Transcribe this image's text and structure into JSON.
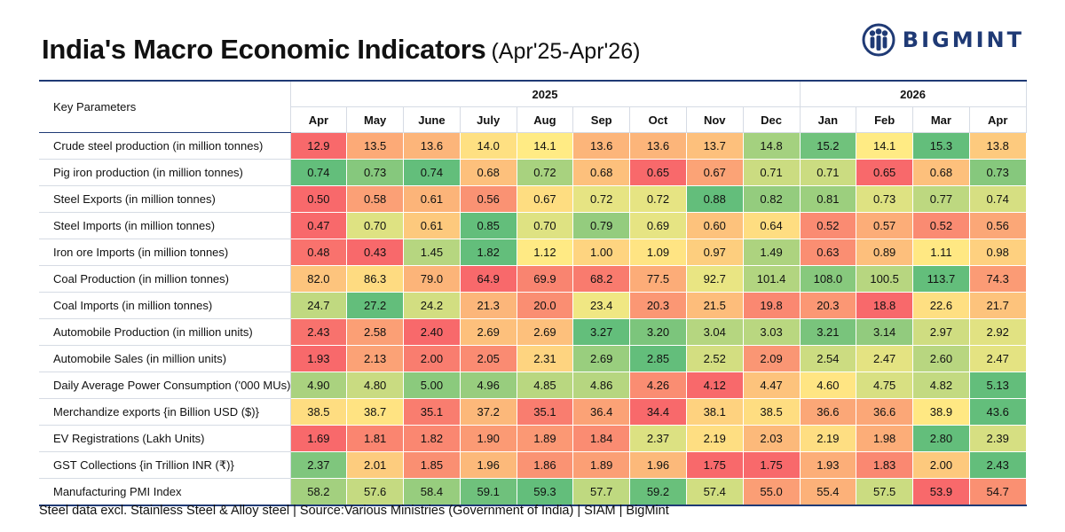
{
  "header": {
    "title": "India's Macro Economic Indicators",
    "subtitle": "(Apr'25-Apr'26)"
  },
  "logo": {
    "text": "BIGMINT",
    "icon": "bigmint-people-icon",
    "color": "#1f3a75"
  },
  "footer": {
    "note": "Steel data excl. Stainless Steel & Alloy steel | Source:Various Ministries (Government of India) | SIAM | BigMint"
  },
  "colors": {
    "low": "#f8696b",
    "mid": "#ffeb84",
    "high": "#63be7b",
    "rule": "#1f3a75"
  },
  "chart_data": {
    "type": "heatmap",
    "row_header": "Key Parameters",
    "years": [
      {
        "label": "2025",
        "span": 9
      },
      {
        "label": "2026",
        "span": 4
      }
    ],
    "columns": [
      "Apr",
      "May",
      "June",
      "July",
      "Aug",
      "Sep",
      "Oct",
      "Nov",
      "Dec",
      "Jan",
      "Feb",
      "Mar",
      "Apr"
    ],
    "color_scale": "per-row: lowest red, middle yellow, highest green",
    "rows": [
      {
        "label": "Crude steel production (in million tonnes)",
        "values": [
          "12.9",
          "13.5",
          "13.6",
          "14.0",
          "14.1",
          "13.6",
          "13.6",
          "13.7",
          "14.8",
          "15.2",
          "14.1",
          "15.3",
          "13.8"
        ]
      },
      {
        "label": "Pig iron production (in million tonnes)",
        "values": [
          "0.74",
          "0.73",
          "0.74",
          "0.68",
          "0.72",
          "0.68",
          "0.65",
          "0.67",
          "0.71",
          "0.71",
          "0.65",
          "0.68",
          "0.73"
        ]
      },
      {
        "label": "Steel Exports (in million tonnes)",
        "values": [
          "0.50",
          "0.58",
          "0.61",
          "0.56",
          "0.67",
          "0.72",
          "0.72",
          "0.88",
          "0.82",
          "0.81",
          "0.73",
          "0.77",
          "0.74"
        ]
      },
      {
        "label": "Steel Imports (in million tonnes)",
        "values": [
          "0.47",
          "0.70",
          "0.61",
          "0.85",
          "0.70",
          "0.79",
          "0.69",
          "0.60",
          "0.64",
          "0.52",
          "0.57",
          "0.52",
          "0.56"
        ]
      },
      {
        "label": "Iron ore Imports (in million tonnes)",
        "values": [
          "0.48",
          "0.43",
          "1.45",
          "1.82",
          "1.12",
          "1.00",
          "1.09",
          "0.97",
          "1.49",
          "0.63",
          "0.89",
          "1.11",
          "0.98"
        ]
      },
      {
        "label": "Coal Production (in million tonnes)",
        "values": [
          "82.0",
          "86.3",
          "79.0",
          "64.9",
          "69.9",
          "68.2",
          "77.5",
          "92.7",
          "101.4",
          "108.0",
          "100.5",
          "113.7",
          "74.3"
        ]
      },
      {
        "label": "Coal Imports (in million tonnes)",
        "values": [
          "24.7",
          "27.2",
          "24.2",
          "21.3",
          "20.0",
          "23.4",
          "20.3",
          "21.5",
          "19.8",
          "20.3",
          "18.8",
          "22.6",
          "21.7"
        ]
      },
      {
        "label": "Automobile Production (in million units)",
        "values": [
          "2.43",
          "2.58",
          "2.40",
          "2.69",
          "2.69",
          "3.27",
          "3.20",
          "3.04",
          "3.03",
          "3.21",
          "3.14",
          "2.97",
          "2.92"
        ]
      },
      {
        "label": "Automobile Sales (in million units)",
        "values": [
          "1.93",
          "2.13",
          "2.00",
          "2.05",
          "2.31",
          "2.69",
          "2.85",
          "2.52",
          "2.09",
          "2.54",
          "2.47",
          "2.60",
          "2.47"
        ]
      },
      {
        "label": "Daily Average Power Consumption ('000 MUs)",
        "values": [
          "4.90",
          "4.80",
          "5.00",
          "4.96",
          "4.85",
          "4.86",
          "4.26",
          "4.12",
          "4.47",
          "4.60",
          "4.75",
          "4.82",
          "5.13"
        ]
      },
      {
        "label": "Merchandize exports {in Billion USD ($)}",
        "values": [
          "38.5",
          "38.7",
          "35.1",
          "37.2",
          "35.1",
          "36.4",
          "34.4",
          "38.1",
          "38.5",
          "36.6",
          "36.6",
          "38.9",
          "43.6"
        ]
      },
      {
        "label": "EV Registrations (Lakh Units)",
        "values": [
          "1.69",
          "1.81",
          "1.82",
          "1.90",
          "1.89",
          "1.84",
          "2.37",
          "2.19",
          "2.03",
          "2.19",
          "1.98",
          "2.80",
          "2.39"
        ]
      },
      {
        "label": "GST Collections {in Trillion INR (₹)}",
        "values": [
          "2.37",
          "2.01",
          "1.85",
          "1.96",
          "1.86",
          "1.89",
          "1.96",
          "1.75",
          "1.75",
          "1.93",
          "1.83",
          "2.00",
          "2.43"
        ]
      },
      {
        "label": "Manufacturing PMI Index",
        "values": [
          "58.2",
          "57.6",
          "58.4",
          "59.1",
          "59.3",
          "57.7",
          "59.2",
          "57.4",
          "55.0",
          "55.4",
          "57.5",
          "53.9",
          "54.7"
        ]
      }
    ]
  }
}
